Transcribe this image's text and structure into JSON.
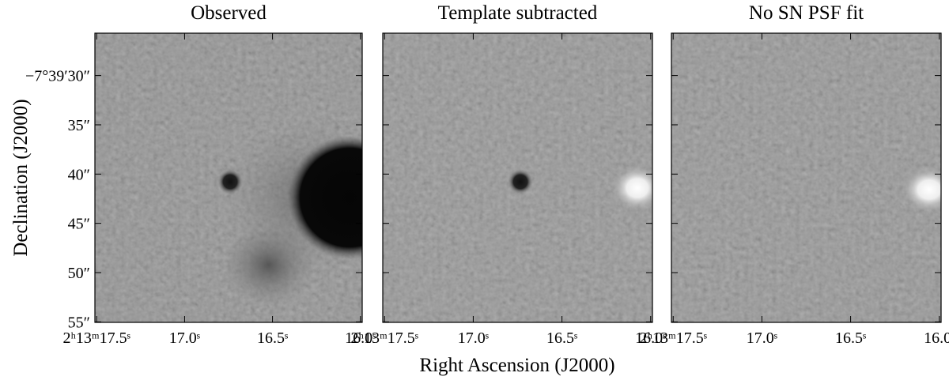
{
  "chart_data": [
    {
      "type": "image",
      "title": "Observed",
      "xlim": [
        17.51,
        15.99
      ],
      "xticks": [
        {
          "value": 17.5,
          "label": "2ʰ13ᵐ17.5ˢ"
        },
        {
          "value": 17.0,
          "label": "17.0ˢ"
        },
        {
          "value": 16.5,
          "label": "16.5ˢ"
        },
        {
          "value": 16.0,
          "label": "16.0ˢ"
        }
      ],
      "ylim": [
        55.05,
        25.7
      ],
      "yticks": [
        {
          "value": 30,
          "label": "−7°39′30″"
        },
        {
          "value": 35,
          "label": "35″"
        },
        {
          "value": 40,
          "label": "40″"
        },
        {
          "value": 45,
          "label": "45″"
        },
        {
          "value": 50,
          "label": "50″"
        },
        {
          "value": 55,
          "label": "55″"
        }
      ]
    },
    {
      "type": "image",
      "title": "Template subtracted",
      "xlim": [
        17.51,
        15.99
      ],
      "xticks": [
        {
          "value": 17.5,
          "label": "2ʰ13ᵐ17.5ˢ"
        },
        {
          "value": 17.0,
          "label": "17.0ˢ"
        },
        {
          "value": 16.5,
          "label": "16.5ˢ"
        },
        {
          "value": 16.0,
          "label": "16.0ˢ"
        }
      ],
      "ylim": [
        55.05,
        25.7
      ],
      "yticks": [
        30,
        35,
        40,
        45,
        50,
        55
      ]
    },
    {
      "type": "image",
      "title": "No SN PSF fit",
      "xlim": [
        17.51,
        15.99
      ],
      "xticks": [
        {
          "value": 17.5,
          "label": "2ʰ13ᵐ17.5ˢ"
        },
        {
          "value": 17.0,
          "label": "17.0ˢ"
        },
        {
          "value": 16.5,
          "label": "16.5ˢ"
        },
        {
          "value": 16.0,
          "label": "16.0ˢ"
        }
      ],
      "ylim": [
        55.05,
        25.7
      ],
      "yticks": [
        30,
        35,
        40,
        45,
        50,
        55
      ]
    }
  ],
  "xlabel": "Right Ascension (J2000)",
  "ylabel": "Declination (J2000)"
}
